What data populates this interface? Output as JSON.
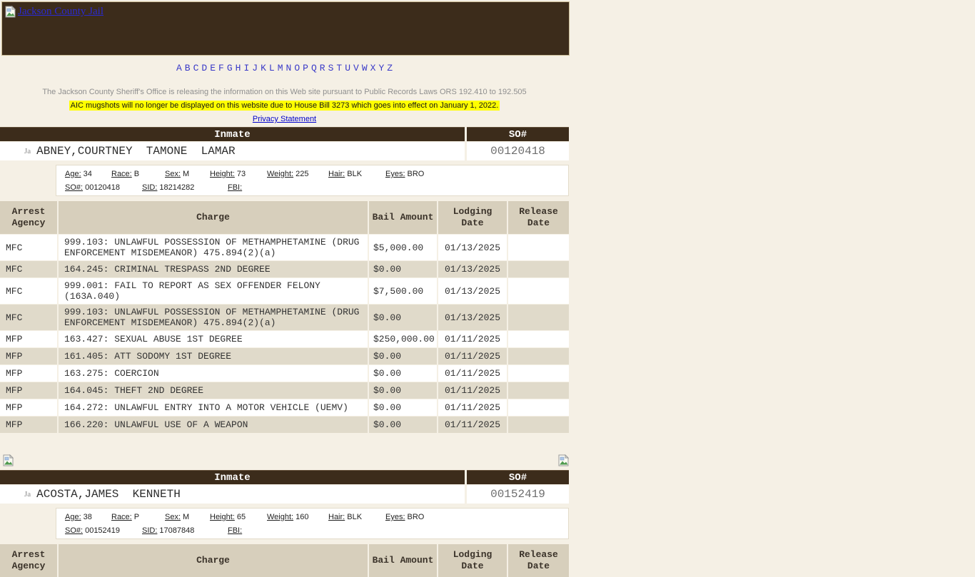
{
  "header": {
    "logo_alt": "Jackson County Jail"
  },
  "alphabet": "ABCDEFGHIJKLMNOPQRSTUVWXYZ",
  "notices": {
    "public_records": "The Jackson County Sheriff's Office is releasing the information on this Web site pursuant to Public Records Laws ORS 192.410 to 192.505",
    "mugshots": "AIC mugshots will no longer be displayed on this website due to House Bill 3273 which goes into effect on January 1, 2022.",
    "privacy_link": "Privacy Statement"
  },
  "table_headers": {
    "inmate": "Inmate",
    "so_number": "SO#",
    "charges": {
      "arrest_agency": "Arrest Agency",
      "charge": "Charge",
      "bail_amount": "Bail Amount",
      "lodging_date": "Lodging Date",
      "release_date": "Release Date"
    }
  },
  "labels": {
    "age": "Age:",
    "race": "Race:",
    "sex": "Sex:",
    "height": "Height:",
    "weight": "Weight:",
    "hair": "Hair:",
    "eyes": "Eyes:",
    "so": "SO#:",
    "sid": "SID:",
    "fbi": "FBI:"
  },
  "broken_image_alt": "Ja",
  "colors": {
    "banner_brown": "#3c2c1b",
    "charges_header_beige": "#d7cfbc",
    "row_alt_beige": "#e0daca",
    "page_bg": "#f5f0e5",
    "highlight_yellow": "#ffff00",
    "link_blue": "#0000cc"
  },
  "inmates": [
    {
      "name": "ABNEY,COURTNEY  TAMONE  LAMAR",
      "so_number": "00120418",
      "details": {
        "age": "34",
        "race": "B",
        "sex": "M",
        "height": "73",
        "weight": "225",
        "hair": "BLK",
        "eyes": "BRO",
        "so": "00120418",
        "sid": "18214282",
        "fbi": ""
      },
      "charges": [
        {
          "agency": "MFC",
          "charge": "999.103: UNLAWFUL POSSESSION OF METHAMPHETAMINE (DRUG ENFORCEMENT MISDEMEANOR) 475.894(2)(a)",
          "bail": "$5,000.00",
          "lodging": "01/13/2025",
          "release": ""
        },
        {
          "agency": "MFC",
          "charge": "164.245: CRIMINAL TRESPASS 2ND DEGREE",
          "bail": "$0.00",
          "lodging": "01/13/2025",
          "release": ""
        },
        {
          "agency": "MFC",
          "charge": "999.001: FAIL TO REPORT AS SEX OFFENDER FELONY (163A.040)",
          "bail": "$7,500.00",
          "lodging": "01/13/2025",
          "release": ""
        },
        {
          "agency": "MFC",
          "charge": "999.103: UNLAWFUL POSSESSION OF METHAMPHETAMINE (DRUG ENFORCEMENT MISDEMEANOR) 475.894(2)(a)",
          "bail": "$0.00",
          "lodging": "01/13/2025",
          "release": ""
        },
        {
          "agency": "MFP",
          "charge": "163.427: SEXUAL ABUSE 1ST DEGREE",
          "bail": "$250,000.00",
          "lodging": "01/11/2025",
          "release": ""
        },
        {
          "agency": "MFP",
          "charge": "161.405: ATT SODOMY 1ST DEGREE",
          "bail": "$0.00",
          "lodging": "01/11/2025",
          "release": ""
        },
        {
          "agency": "MFP",
          "charge": "163.275: COERCION",
          "bail": "$0.00",
          "lodging": "01/11/2025",
          "release": ""
        },
        {
          "agency": "MFP",
          "charge": "164.045: THEFT 2ND DEGREE",
          "bail": "$0.00",
          "lodging": "01/11/2025",
          "release": ""
        },
        {
          "agency": "MFP",
          "charge": "164.272: UNLAWFUL ENTRY INTO A MOTOR VEHICLE (UEMV)",
          "bail": "$0.00",
          "lodging": "01/11/2025",
          "release": ""
        },
        {
          "agency": "MFP",
          "charge": "166.220: UNLAWFUL USE OF A WEAPON",
          "bail": "$0.00",
          "lodging": "01/11/2025",
          "release": ""
        }
      ]
    },
    {
      "name": "ACOSTA,JAMES  KENNETH",
      "so_number": "00152419",
      "details": {
        "age": "38",
        "race": "P",
        "sex": "M",
        "height": "65",
        "weight": "160",
        "hair": "BLK",
        "eyes": "BRO",
        "so": "00152419",
        "sid": "17087848",
        "fbi": ""
      },
      "charges": []
    }
  ]
}
